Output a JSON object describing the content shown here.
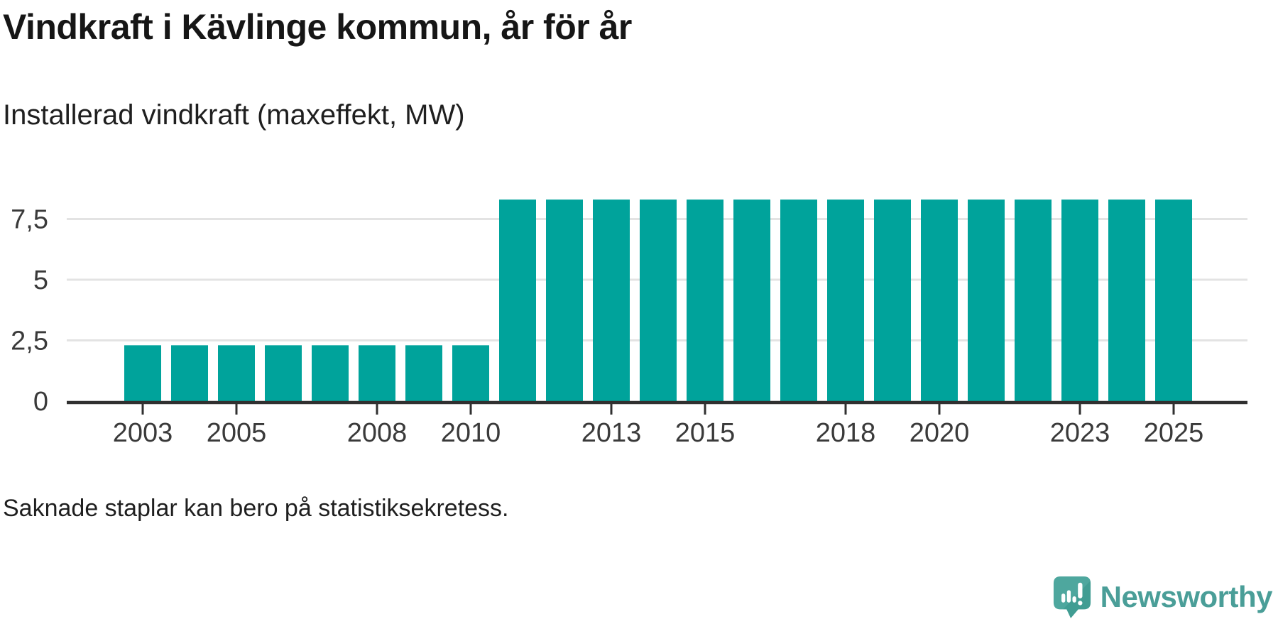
{
  "header": {
    "title": "Vindkraft i Kävlinge kommun, år för år",
    "subtitle": "Installerad vindkraft (maxeffekt, MW)"
  },
  "footer": {
    "note": "Saknade staplar kan bero på statistiksekretess."
  },
  "logo": {
    "text": "Newsworthy",
    "icon": "newsworthy-speech-bubble-bar-chart-icon",
    "text_color": "#4a9e98",
    "icon_color": "#4ea79e"
  },
  "chart_data": {
    "type": "bar",
    "title": "Vindkraft i Kävlinge kommun, år för år",
    "subtitle": "Installerad vindkraft (maxeffekt, MW)",
    "unit": "MW",
    "ylabel": "Installerad vindkraft (maxeffekt, MW)",
    "xlabel": "",
    "x": [
      2003,
      2004,
      2005,
      2006,
      2007,
      2008,
      2009,
      2010,
      2011,
      2012,
      2013,
      2014,
      2015,
      2016,
      2017,
      2018,
      2019,
      2020,
      2021,
      2022,
      2023,
      2024,
      2025
    ],
    "values": [
      2.3,
      2.3,
      2.3,
      2.3,
      2.3,
      2.3,
      2.3,
      2.3,
      8.3,
      8.3,
      8.3,
      8.3,
      8.3,
      8.3,
      8.3,
      8.3,
      8.3,
      8.3,
      8.3,
      8.3,
      8.3,
      8.3,
      8.3
    ],
    "bar_color": "#00a39b",
    "ylim": [
      0,
      9.2
    ],
    "yticks": [
      {
        "value": 0,
        "label": "0"
      },
      {
        "value": 2.5,
        "label": "2,5"
      },
      {
        "value": 5,
        "label": "5"
      },
      {
        "value": 7.5,
        "label": "7,5"
      }
    ],
    "xtick_years": [
      2003,
      2005,
      2008,
      2010,
      2013,
      2015,
      2018,
      2020,
      2023,
      2025
    ],
    "grid": "horizontal",
    "legend": "none",
    "decimal_separator": ",",
    "gridline_color": "#e3e3e3",
    "axis_color": "#303030",
    "tick_label_color": "#3a3a3a"
  }
}
